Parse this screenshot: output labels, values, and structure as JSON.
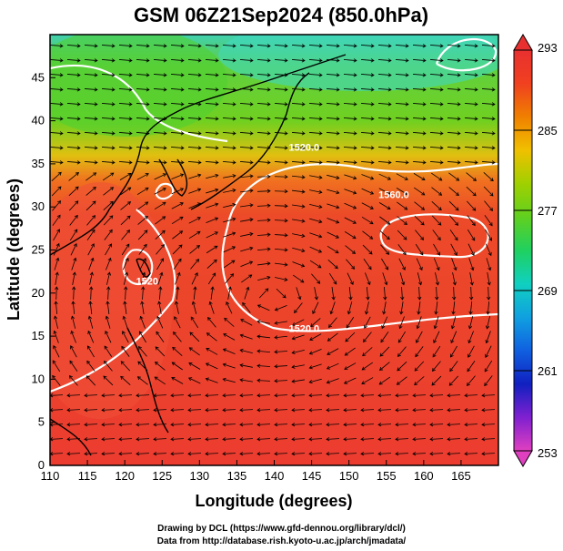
{
  "chart_data": {
    "type": "heatmap",
    "title": "GSM 06Z21Sep2024 (850.0hPa)",
    "xlabel": "Longitude (degrees)",
    "ylabel": "Latitude  (degrees)",
    "xlim": [
      110,
      170
    ],
    "ylim": [
      0,
      50
    ],
    "x_ticks": [
      110,
      115,
      120,
      125,
      130,
      135,
      140,
      145,
      150,
      155,
      160,
      165
    ],
    "y_ticks": [
      0,
      5,
      10,
      15,
      20,
      25,
      30,
      35,
      40,
      45
    ],
    "colorbar": {
      "range": [
        253,
        293
      ],
      "tick_values": [
        253,
        261,
        269,
        277,
        285,
        293
      ],
      "colors": [
        "#e040c0",
        "#8020d0",
        "#1020c0",
        "#1060e0",
        "#10a0e0",
        "#10d0c0",
        "#20d060",
        "#60d020",
        "#a0d000",
        "#f0c000",
        "#f08000",
        "#f04020",
        "#e83030"
      ]
    },
    "contours": [
      {
        "label": "1520.0",
        "label_pos": [
          144,
          36.5
        ]
      },
      {
        "label": "1560.0",
        "label_pos": [
          156,
          31
        ]
      },
      {
        "label": "1520.0",
        "label_pos": [
          144,
          15.5
        ]
      },
      {
        "label": "1520",
        "label_pos": [
          123,
          21
        ]
      }
    ],
    "grid": false,
    "overlay": "wind streamlines and coastlines"
  },
  "credits": {
    "drawing": "Drawing by DCL (https://www.gfd-dennou.org/library/dcl/)",
    "data": "Data from http://database.rish.kyoto-u.ac.jp/arch/jmadata/"
  }
}
